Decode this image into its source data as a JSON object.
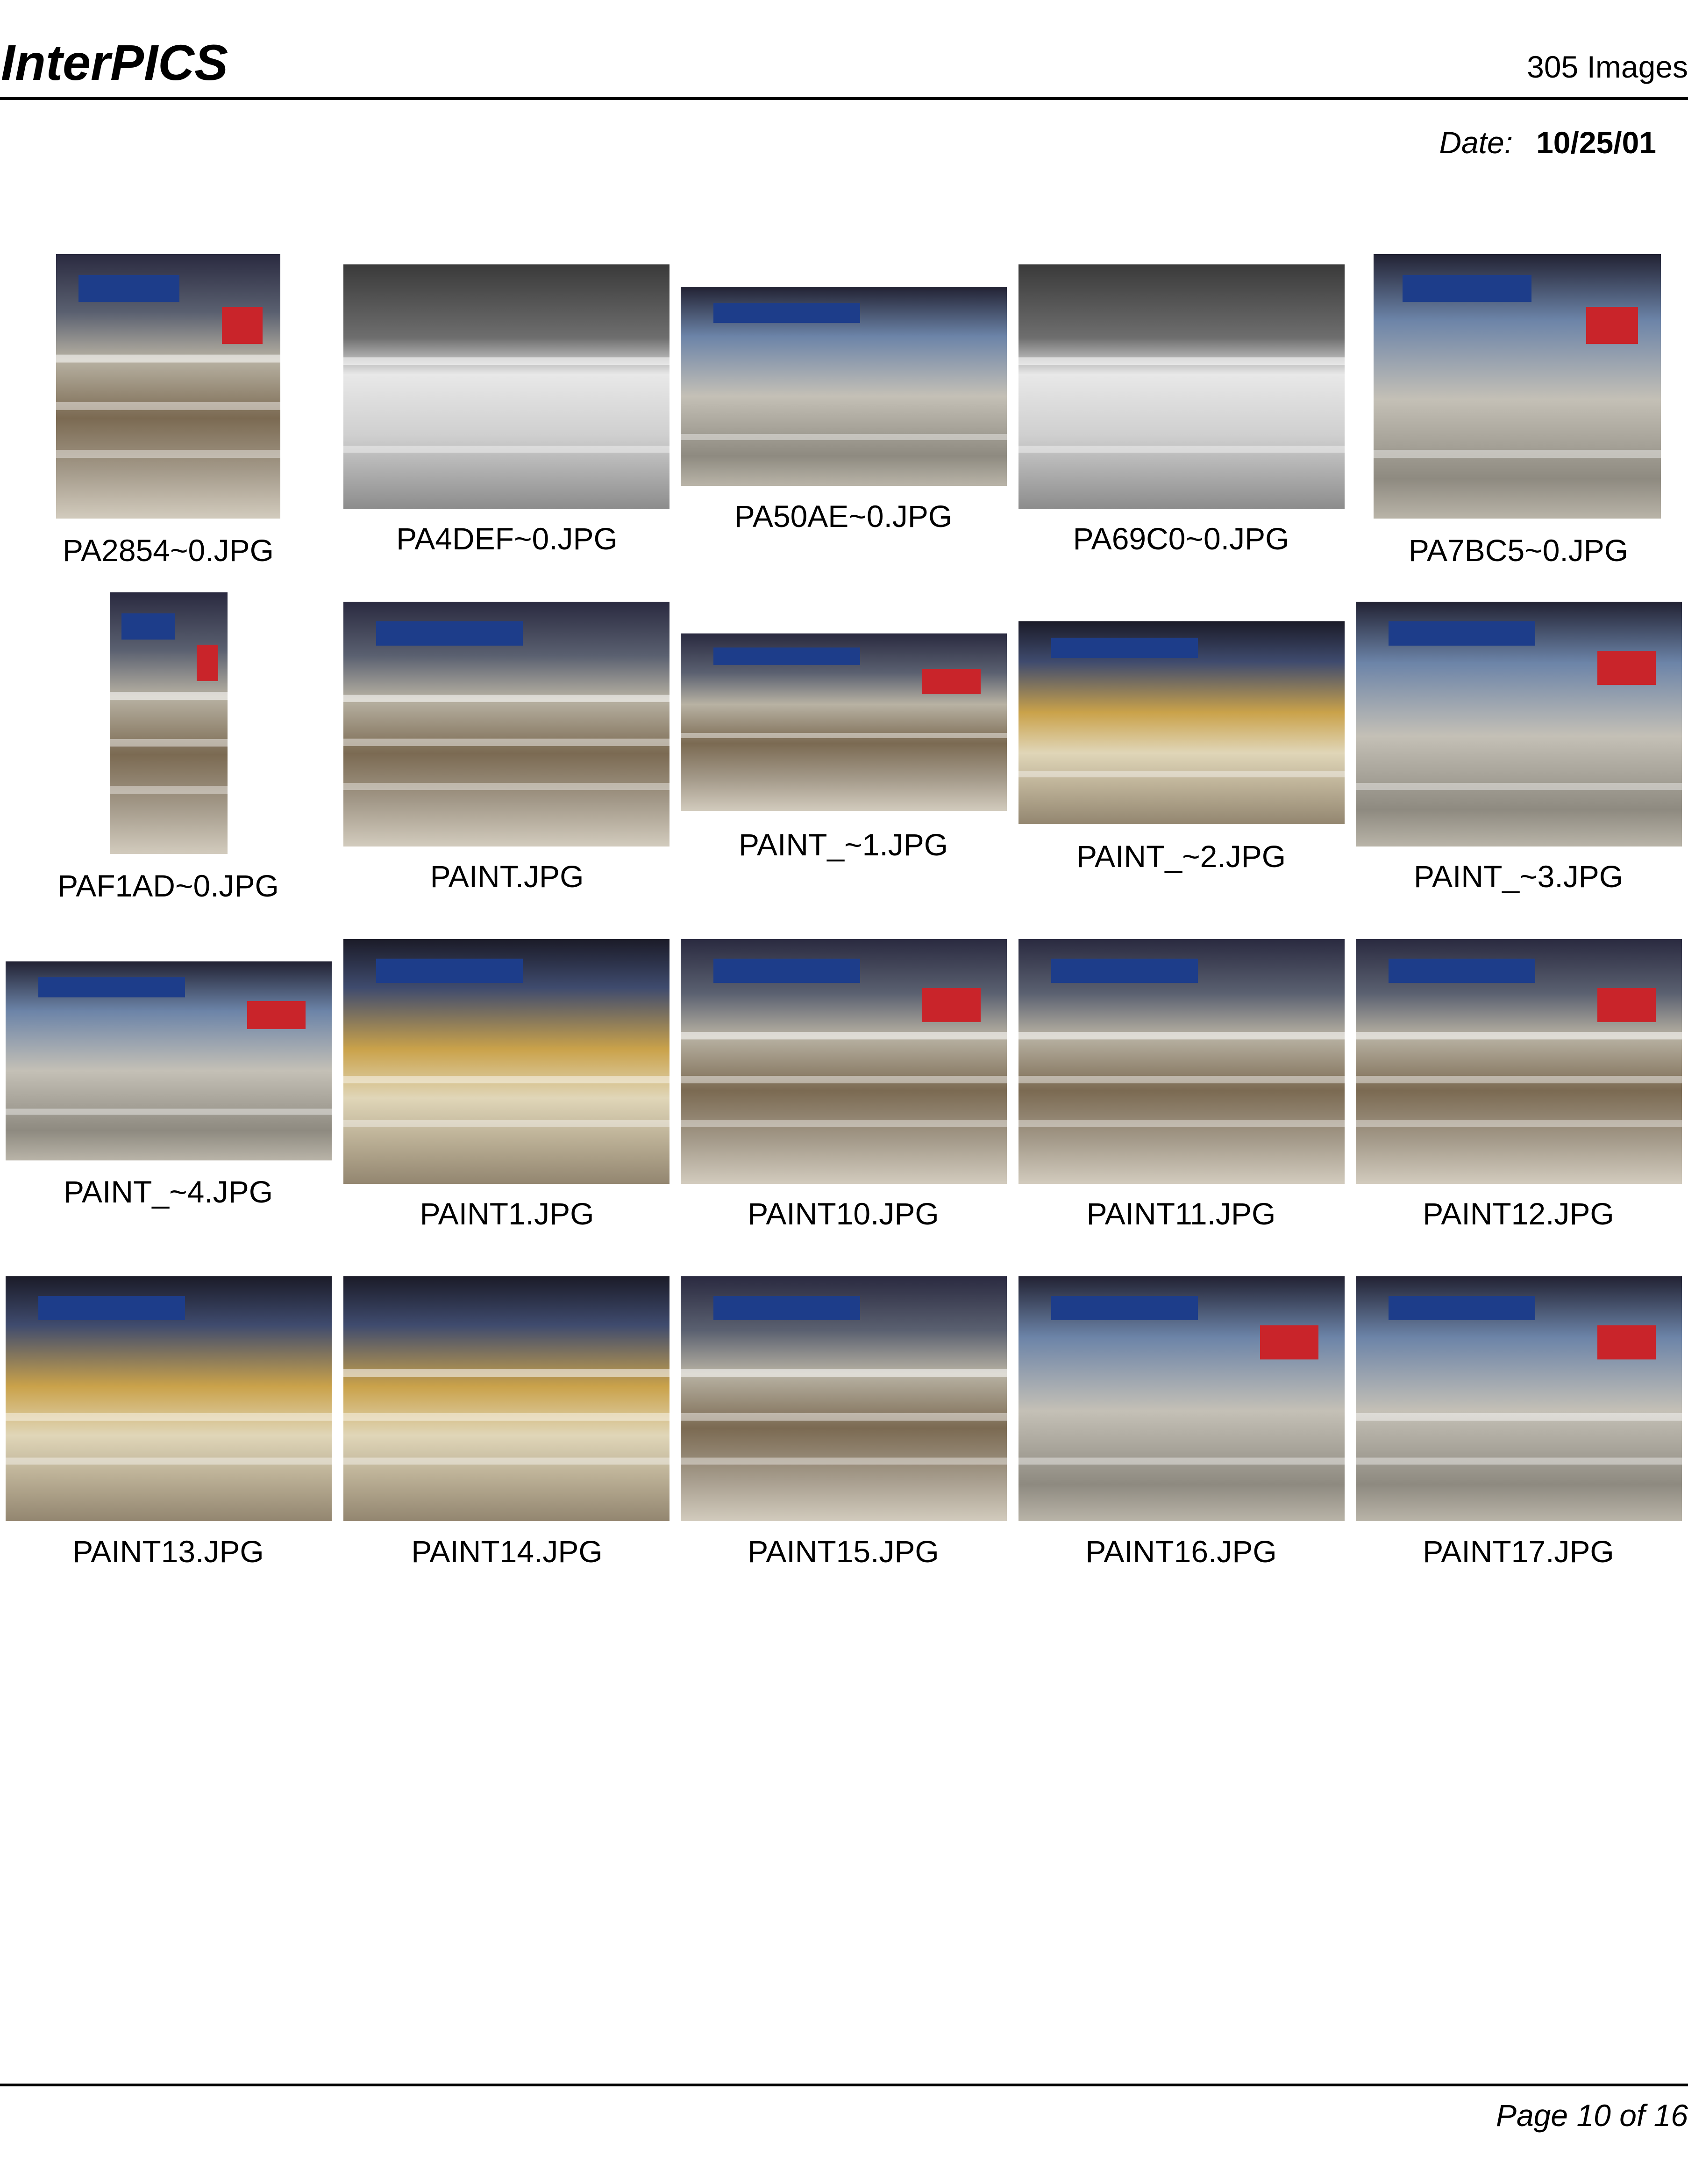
{
  "header": {
    "brand": "InterPICS",
    "image_count": "305 Images",
    "date_label": "Date:",
    "date_value": "10/25/01"
  },
  "footer": {
    "page": "Page 10 of 16"
  },
  "thumbnails": [
    {
      "caption": "PA2854~0.JPG"
    },
    {
      "caption": "PA4DEF~0.JPG"
    },
    {
      "caption": "PA50AE~0.JPG"
    },
    {
      "caption": "PA69C0~0.JPG"
    },
    {
      "caption": "PA7BC5~0.JPG"
    },
    {
      "caption": "PAF1AD~0.JPG"
    },
    {
      "caption": "PAINT.JPG"
    },
    {
      "caption": "PAINT_~1.JPG"
    },
    {
      "caption": "PAINT_~2.JPG"
    },
    {
      "caption": "PAINT_~3.JPG"
    },
    {
      "caption": "PAINT_~4.JPG"
    },
    {
      "caption": "PAINT1.JPG"
    },
    {
      "caption": "PAINT10.JPG"
    },
    {
      "caption": "PAINT11.JPG"
    },
    {
      "caption": "PAINT12.JPG"
    },
    {
      "caption": "PAINT13.JPG"
    },
    {
      "caption": "PAINT14.JPG"
    },
    {
      "caption": "PAINT15.JPG"
    },
    {
      "caption": "PAINT16.JPG"
    },
    {
      "caption": "PAINT17.JPG"
    }
  ]
}
